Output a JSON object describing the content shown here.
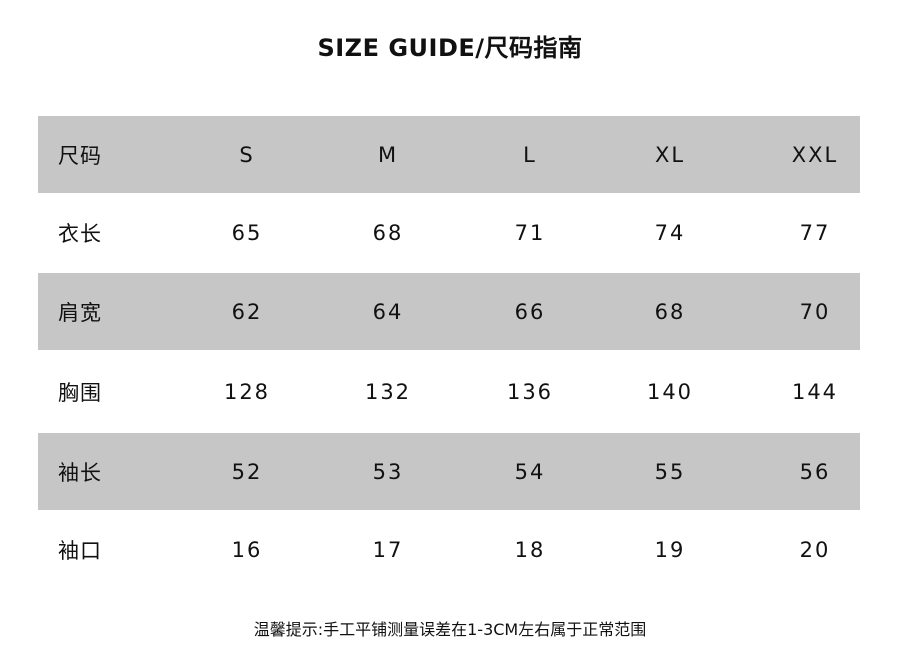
{
  "title": "SIZE GUIDE/尺码指南",
  "table": {
    "header": [
      "尺码",
      "S",
      "M",
      "L",
      "XL",
      "XXL"
    ],
    "rows": [
      [
        "衣长",
        "65",
        "68",
        "71",
        "74",
        "77"
      ],
      [
        "肩宽",
        "62",
        "64",
        "66",
        "68",
        "70"
      ],
      [
        "胸围",
        "128",
        "132",
        "136",
        "140",
        "144"
      ],
      [
        "袖长",
        "52",
        "53",
        "54",
        "55",
        "56"
      ],
      [
        "袖口",
        "16",
        "17",
        "18",
        "19",
        "20"
      ]
    ]
  },
  "note": "温馨提示:手工平铺测量误差在1-3CM左右属于正常范围",
  "colors": {
    "band": "#c6c6c6",
    "text": "#111111"
  }
}
